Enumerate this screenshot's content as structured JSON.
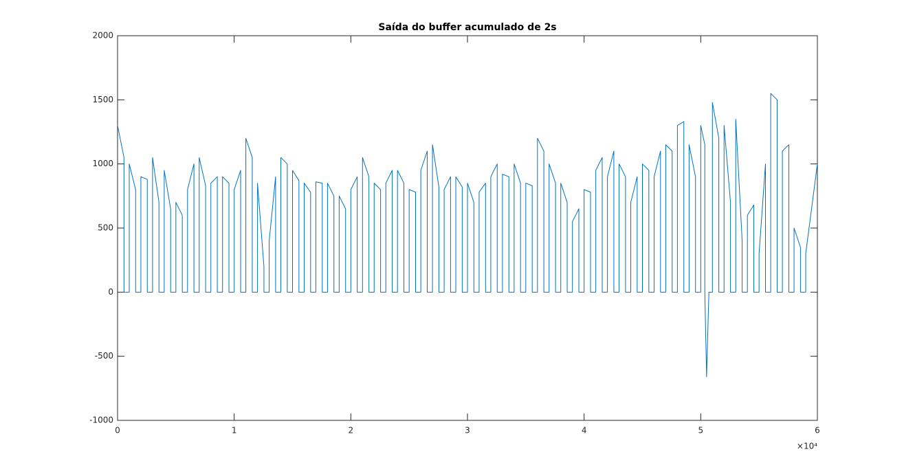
{
  "chart_data": {
    "type": "line",
    "title": "Saída do buffer acumulado de 2s",
    "x_exponent_label": "×10⁴",
    "color": "#0072bd",
    "xlim": [
      0,
      60000
    ],
    "xticks": [
      0,
      {
        "value": 10000,
        "label": "1"
      },
      {
        "value": 20000,
        "label": "2"
      },
      {
        "value": 30000,
        "label": "3"
      },
      {
        "value": 40000,
        "label": "4"
      },
      {
        "value": 50000,
        "label": "5"
      },
      {
        "value": 60000,
        "label": "6"
      }
    ],
    "ylim": [
      -1000,
      2000
    ],
    "yticks": [
      -1000,
      -500,
      0,
      500,
      1000,
      1500,
      2000
    ],
    "grid": false,
    "x": [
      0,
      550,
      550,
      1000,
      1000,
      1550,
      1550,
      2000,
      2000,
      2550,
      2550,
      3000,
      3000,
      3550,
      3550,
      4000,
      4000,
      4550,
      4550,
      5000,
      5000,
      5550,
      5550,
      6000,
      6000,
      6550,
      6550,
      7000,
      7000,
      7550,
      7550,
      8000,
      8000,
      8550,
      8550,
      9000,
      9000,
      9550,
      9550,
      10000,
      10000,
      10550,
      10550,
      11000,
      11000,
      11550,
      11550,
      12000,
      12000,
      12550,
      12550,
      13000,
      13000,
      13550,
      13550,
      14000,
      14000,
      14550,
      14550,
      15000,
      15000,
      15550,
      15550,
      16000,
      16000,
      16550,
      16550,
      17000,
      17000,
      17550,
      17550,
      18000,
      18000,
      18550,
      18550,
      19000,
      19000,
      19550,
      19550,
      20000,
      20000,
      20550,
      20550,
      21000,
      21000,
      21550,
      21550,
      22000,
      22000,
      22550,
      22550,
      23000,
      23000,
      23550,
      23550,
      24000,
      24000,
      24550,
      24550,
      25000,
      25000,
      25550,
      25550,
      26000,
      26000,
      26550,
      26550,
      27000,
      27000,
      27550,
      27550,
      28000,
      28000,
      28550,
      28550,
      29000,
      29000,
      29550,
      29550,
      30000,
      30000,
      30550,
      30550,
      31000,
      31000,
      31550,
      31550,
      32000,
      32000,
      32550,
      32550,
      33000,
      33000,
      33550,
      33550,
      34000,
      34000,
      34550,
      34550,
      35000,
      35000,
      35550,
      35550,
      36000,
      36000,
      36550,
      36550,
      37000,
      37000,
      37550,
      37550,
      38000,
      38000,
      38550,
      38550,
      39000,
      39000,
      39550,
      39550,
      40000,
      40000,
      40550,
      40550,
      41000,
      41000,
      41550,
      41550,
      42000,
      42000,
      42550,
      42550,
      43000,
      43000,
      43550,
      43550,
      44000,
      44000,
      44550,
      44550,
      45000,
      45000,
      45550,
      45550,
      46000,
      46000,
      46550,
      46550,
      47000,
      47000,
      47550,
      47550,
      48000,
      48000,
      48550,
      48550,
      49000,
      49000,
      49550,
      49550,
      50000,
      50000,
      50350,
      50350,
      50500,
      50700,
      51000,
      51000,
      51550,
      51550,
      52000,
      52000,
      52550,
      52550,
      53000,
      53000,
      53550,
      53550,
      54000,
      54000,
      54550,
      54550,
      55000,
      55000,
      55550,
      55550,
      56000,
      56000,
      56550,
      56550,
      57000,
      57000,
      57550,
      57550,
      58000,
      58000,
      58550,
      58550,
      59000,
      59000,
      60000
    ],
    "values": [
      1300,
      1050,
      0,
      0,
      1000,
      800,
      0,
      0,
      900,
      880,
      0,
      0,
      1050,
      700,
      0,
      0,
      950,
      650,
      0,
      0,
      700,
      600,
      0,
      0,
      800,
      1000,
      0,
      0,
      1050,
      830,
      0,
      0,
      850,
      900,
      0,
      0,
      900,
      850,
      0,
      0,
      800,
      950,
      0,
      0,
      1200,
      1050,
      0,
      0,
      850,
      200,
      0,
      0,
      400,
      900,
      0,
      0,
      1050,
      1000,
      0,
      0,
      950,
      870,
      0,
      0,
      850,
      780,
      0,
      0,
      860,
      850,
      0,
      0,
      850,
      750,
      0,
      0,
      750,
      650,
      0,
      0,
      800,
      900,
      0,
      0,
      1050,
      900,
      0,
      0,
      850,
      800,
      0,
      0,
      850,
      950,
      0,
      0,
      950,
      850,
      0,
      0,
      800,
      780,
      0,
      0,
      950,
      1100,
      0,
      0,
      1150,
      820,
      0,
      0,
      800,
      900,
      0,
      0,
      900,
      820,
      0,
      0,
      850,
      700,
      0,
      0,
      780,
      850,
      0,
      0,
      900,
      1000,
      0,
      0,
      920,
      900,
      0,
      0,
      1000,
      850,
      0,
      0,
      850,
      830,
      0,
      0,
      1200,
      1100,
      0,
      0,
      1000,
      850,
      0,
      0,
      850,
      700,
      0,
      0,
      550,
      650,
      0,
      0,
      800,
      780,
      0,
      0,
      950,
      1050,
      0,
      0,
      900,
      1100,
      0,
      0,
      1000,
      900,
      0,
      0,
      700,
      900,
      0,
      0,
      1000,
      950,
      0,
      0,
      900,
      1100,
      0,
      0,
      1150,
      1100,
      0,
      0,
      1300,
      1330,
      0,
      0,
      1150,
      900,
      0,
      0,
      1300,
      1150,
      0,
      -660,
      0,
      0,
      1480,
      1200,
      0,
      0,
      1300,
      700,
      0,
      0,
      1350,
      400,
      0,
      0,
      600,
      680,
      0,
      0,
      300,
      1000,
      0,
      0,
      1550,
      1500,
      0,
      0,
      1100,
      1150,
      0,
      0,
      500,
      350,
      0,
      0,
      300,
      1000
    ]
  }
}
